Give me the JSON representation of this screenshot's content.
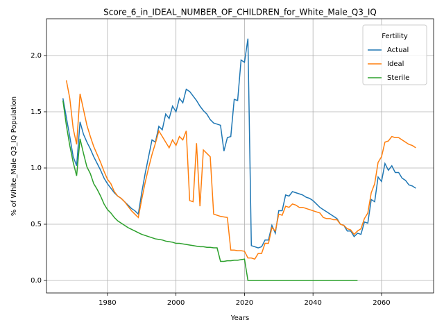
{
  "chart_data": {
    "type": "line",
    "title": "Score_6_in_IDEAL_NUMBER_OF_CHILDREN_for_White_Male_Q3_IQ",
    "x_label": "Years",
    "y_label": "% of White_Male Q3_IQ Population",
    "legend_title": "Fertility",
    "legend_position": "upper right",
    "grid": true,
    "x": [
      1967,
      1968,
      1969,
      1970,
      1971,
      1972,
      1973,
      1974,
      1975,
      1976,
      1977,
      1978,
      1979,
      1980,
      1981,
      1982,
      1983,
      1984,
      1985,
      1986,
      1987,
      1988,
      1989,
      1990,
      1991,
      1992,
      1993,
      1994,
      1995,
      1996,
      1997,
      1998,
      1999,
      2000,
      2001,
      2002,
      2003,
      2004,
      2005,
      2006,
      2007,
      2008,
      2009,
      2010,
      2011,
      2012,
      2013,
      2014,
      2015,
      2016,
      2017,
      2018,
      2019,
      2020,
      2021,
      2022,
      2023,
      2024,
      2025,
      2026,
      2027,
      2028,
      2029,
      2030,
      2031,
      2032,
      2033,
      2034,
      2035,
      2036,
      2037,
      2038,
      2039,
      2040,
      2041,
      2042,
      2043,
      2044,
      2045,
      2046,
      2047,
      2048,
      2049,
      2050,
      2051,
      2052,
      2053,
      2054,
      2055,
      2056,
      2057,
      2058,
      2059,
      2060,
      2061,
      2062,
      2063,
      2064,
      2065,
      2066,
      2067,
      2068,
      2069,
      2070
    ],
    "series": [
      {
        "name": "Actual",
        "color": "#1f77b4",
        "values": [
          1.62,
          1.45,
          1.28,
          1.1,
          1.02,
          1.41,
          1.3,
          1.23,
          1.17,
          1.1,
          1.04,
          0.98,
          0.91,
          0.86,
          0.82,
          0.78,
          0.75,
          0.73,
          0.7,
          0.67,
          0.64,
          0.62,
          0.59,
          0.78,
          0.95,
          1.1,
          1.25,
          1.23,
          1.37,
          1.34,
          1.48,
          1.44,
          1.55,
          1.5,
          1.62,
          1.58,
          1.7,
          1.68,
          1.64,
          1.6,
          1.55,
          1.51,
          1.48,
          1.43,
          1.4,
          1.39,
          1.38,
          1.15,
          1.27,
          1.28,
          1.61,
          1.6,
          1.96,
          1.94,
          2.15,
          0.31,
          0.3,
          0.29,
          0.3,
          0.36,
          0.36,
          0.49,
          0.42,
          0.62,
          0.62,
          0.76,
          0.75,
          0.79,
          0.78,
          0.77,
          0.76,
          0.74,
          0.73,
          0.71,
          0.68,
          0.65,
          0.63,
          0.61,
          0.59,
          0.57,
          0.55,
          0.5,
          0.49,
          0.44,
          0.44,
          0.39,
          0.42,
          0.41,
          0.52,
          0.51,
          0.72,
          0.7,
          0.92,
          0.88,
          1.04,
          0.98,
          1.02,
          0.96,
          0.96,
          0.91,
          0.89,
          0.85,
          0.84,
          0.82
        ]
      },
      {
        "name": "Ideal",
        "color": "#ff7f0e",
        "values": [
          null,
          1.78,
          1.62,
          1.35,
          1.21,
          1.66,
          1.52,
          1.38,
          1.28,
          1.19,
          1.12,
          1.05,
          0.97,
          0.9,
          0.86,
          0.79,
          0.75,
          0.73,
          0.7,
          0.66,
          0.62,
          0.59,
          0.56,
          0.72,
          0.87,
          1.0,
          1.12,
          1.22,
          1.33,
          1.28,
          1.23,
          1.18,
          1.25,
          1.2,
          1.28,
          1.25,
          1.33,
          0.71,
          0.7,
          1.22,
          0.66,
          1.16,
          1.13,
          1.1,
          0.59,
          0.58,
          0.57,
          0.565,
          0.56,
          0.27,
          0.27,
          0.265,
          0.265,
          0.26,
          0.2,
          0.2,
          0.19,
          0.24,
          0.24,
          0.33,
          0.33,
          0.47,
          0.44,
          0.59,
          0.58,
          0.66,
          0.65,
          0.68,
          0.67,
          0.65,
          0.65,
          0.64,
          0.63,
          0.62,
          0.61,
          0.6,
          0.56,
          0.55,
          0.55,
          0.54,
          0.54,
          0.5,
          0.49,
          0.46,
          0.45,
          0.41,
          0.44,
          0.46,
          0.55,
          0.6,
          0.78,
          0.86,
          1.05,
          1.1,
          1.23,
          1.24,
          1.28,
          1.27,
          1.27,
          1.25,
          1.23,
          1.21,
          1.2,
          1.18
        ]
      },
      {
        "name": "Sterile",
        "color": "#2ca02c",
        "values": [
          1.6,
          1.38,
          1.2,
          1.05,
          0.93,
          1.26,
          1.13,
          1.01,
          0.95,
          0.86,
          0.81,
          0.75,
          0.68,
          0.63,
          0.6,
          0.56,
          0.53,
          0.51,
          0.49,
          0.47,
          0.455,
          0.44,
          0.425,
          0.41,
          0.4,
          0.39,
          0.38,
          0.37,
          0.365,
          0.36,
          0.35,
          0.345,
          0.34,
          0.33,
          0.33,
          0.325,
          0.32,
          0.315,
          0.31,
          0.305,
          0.3,
          0.3,
          0.295,
          0.295,
          0.29,
          0.29,
          0.17,
          0.17,
          0.175,
          0.175,
          0.18,
          0.18,
          0.185,
          0.19,
          0,
          0,
          0,
          0,
          0,
          0,
          0,
          0,
          0,
          0,
          0,
          0,
          0,
          0,
          0,
          0,
          0,
          0,
          0,
          0,
          0,
          0,
          0,
          0,
          0,
          0,
          0,
          0,
          0,
          0,
          0,
          0,
          0,
          null,
          null,
          null,
          null,
          null,
          null,
          null,
          null,
          null,
          null,
          null,
          null,
          null,
          null,
          null,
          null,
          null
        ]
      }
    ],
    "xlim": [
      1962.2,
      2075.2
    ],
    "xticks": [
      1980,
      2000,
      2020,
      2040,
      2060
    ],
    "ylim": [
      -0.111,
      2.327
    ],
    "yticks": [
      {
        "value": 0,
        "label": "0.0"
      },
      0.5,
      {
        "value": 1,
        "label": "1.0"
      },
      1.5,
      {
        "value": 2,
        "label": "2.0"
      }
    ]
  }
}
